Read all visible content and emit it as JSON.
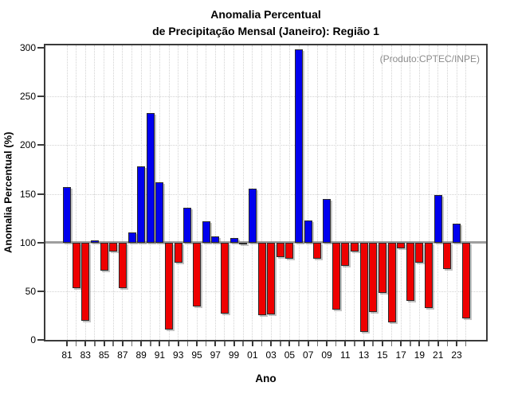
{
  "title": {
    "line1": "Anomalia Percentual",
    "line2": "de Precipitação Mensal (Janeiro): Região 1"
  },
  "annotation": {
    "text": "(Produto:CPTEC/INPE)"
  },
  "axes": {
    "y_label": "Anomalia Percentual (%)",
    "x_label": "Ano"
  },
  "colors": {
    "above_baseline": "#0000ee",
    "below_baseline": "#ee0000",
    "baseline_line": "#9e9e9e",
    "grid": "#d2d2d2",
    "frame": "#3a3a3a",
    "annotation_text": "#8c8c8c"
  },
  "chart_data": {
    "type": "bar",
    "title": "Anomalia Percentual de Precipitação Mensal (Janeiro): Região 1",
    "xlabel": "Ano",
    "ylabel": "Anomalia Percentual (%)",
    "ylim": [
      0,
      300
    ],
    "y_ticks": [
      0,
      50,
      100,
      150,
      200,
      250,
      300
    ],
    "h_gridlines": [
      50,
      150,
      200,
      250
    ],
    "baseline": 100,
    "grid": true,
    "legend": "none",
    "x_tick_label_step": 2,
    "categories": [
      "81",
      "82",
      "83",
      "84",
      "85",
      "86",
      "87",
      "88",
      "89",
      "90",
      "91",
      "92",
      "93",
      "94",
      "95",
      "96",
      "97",
      "98",
      "99",
      "00",
      "01",
      "02",
      "03",
      "04",
      "05",
      "06",
      "07",
      "08",
      "09",
      "10",
      "11",
      "12",
      "13",
      "14",
      "15",
      "16",
      "17",
      "18",
      "19",
      "20",
      "21",
      "22",
      "23",
      "24"
    ],
    "values": [
      157,
      53,
      20,
      102,
      71,
      91,
      53,
      110,
      178,
      233,
      162,
      11,
      79,
      136,
      34,
      122,
      106,
      27,
      105,
      98,
      155,
      25,
      26,
      85,
      83,
      298,
      123,
      83,
      145,
      31,
      76,
      91,
      8,
      29,
      48,
      18,
      94,
      40,
      79,
      33,
      149,
      73,
      119,
      22
    ]
  }
}
